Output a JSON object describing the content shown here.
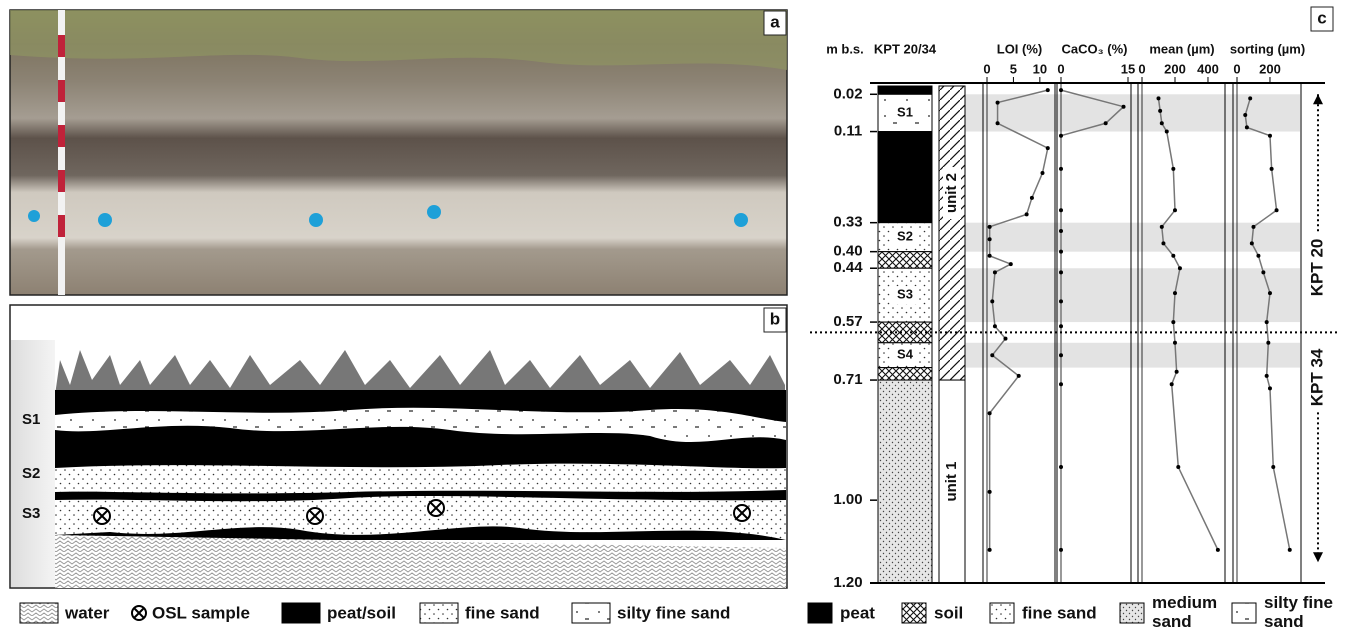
{
  "panel_labels": [
    "a",
    "b",
    "c"
  ],
  "schematic": {
    "layers": [
      "S1",
      "S2",
      "S3"
    ]
  },
  "log": {
    "depth_label": "m b.s.",
    "core_label": "KPT 20/34",
    "depth_range": [
      0,
      1.2
    ],
    "depth_ticks": [
      {
        "value": 0.02,
        "label": "0.02"
      },
      {
        "value": 0.11,
        "label": "0.11"
      },
      {
        "value": 0.33,
        "label": "0.33"
      },
      {
        "value": 0.4,
        "label": "0.40"
      },
      {
        "value": 0.44,
        "label": "0.44"
      },
      {
        "value": 0.57,
        "label": "0.57"
      },
      {
        "value": 0.71,
        "label": "0.71"
      },
      {
        "value": 1.0,
        "label": "1.00"
      },
      {
        "value": 1.2,
        "label": "1.20"
      }
    ],
    "layers": [
      {
        "top": 0,
        "bottom": 0.02,
        "type": "peat"
      },
      {
        "top": 0.02,
        "bottom": 0.11,
        "type": "silty fine sand",
        "name": "S1"
      },
      {
        "top": 0.11,
        "bottom": 0.33,
        "type": "peat"
      },
      {
        "top": 0.33,
        "bottom": 0.4,
        "type": "fine sand",
        "name": "S2"
      },
      {
        "top": 0.4,
        "bottom": 0.44,
        "type": "soil"
      },
      {
        "top": 0.44,
        "bottom": 0.57,
        "type": "fine sand",
        "name": "S3"
      },
      {
        "top": 0.57,
        "bottom": 0.62,
        "type": "soil"
      },
      {
        "top": 0.62,
        "bottom": 0.68,
        "type": "fine sand",
        "name": "S4"
      },
      {
        "top": 0.68,
        "bottom": 0.71,
        "type": "soil"
      },
      {
        "top": 0.71,
        "bottom": 1.2,
        "type": "medium sand"
      }
    ],
    "units": [
      {
        "name": "unit 2",
        "top": 0,
        "bottom": 0.71
      },
      {
        "name": "unit 1",
        "top": 0.71,
        "bottom": 1.2
      }
    ],
    "cores": [
      {
        "name": "KPT 20",
        "top": 0.02,
        "bottom": 0.595
      },
      {
        "name": "KPT 34",
        "top": 0.595,
        "bottom": 1.15
      }
    ],
    "core_boundary": 0.595,
    "sample_bands": [
      [
        0.02,
        0.11
      ],
      [
        0.33,
        0.4
      ],
      [
        0.44,
        0.57
      ],
      [
        0.62,
        0.68
      ]
    ],
    "plots": [
      {
        "title": "LOI (%)",
        "xlim": [
          0,
          12.3
        ],
        "xticks": [
          0,
          5,
          10
        ],
        "depth": [
          0.01,
          0.04,
          0.09,
          0.15,
          0.21,
          0.27,
          0.31,
          0.34,
          0.37,
          0.41,
          0.43,
          0.45,
          0.52,
          0.58,
          0.61,
          0.65,
          0.7,
          0.79,
          0.98,
          1.12
        ],
        "values": [
          11.5,
          2.0,
          2.0,
          11.5,
          10.5,
          8.5,
          7.5,
          0.5,
          0.5,
          0.5,
          4.5,
          1.5,
          1.0,
          1.5,
          3.5,
          1.0,
          6.0,
          0.5,
          0.5,
          0.5
        ]
      },
      {
        "title": "CaCO₃ (%)",
        "xlim": [
          0,
          15
        ],
        "xticks": [
          0,
          15
        ],
        "depth": [
          0.01,
          0.05,
          0.09,
          0.12,
          0.2,
          0.3,
          0.35,
          0.4,
          0.45,
          0.52,
          0.58,
          0.65,
          0.72,
          0.92,
          1.12
        ],
        "values": [
          0,
          14,
          10,
          0,
          0,
          0,
          0,
          0,
          0,
          0,
          0,
          0,
          0,
          0,
          0
        ]
      },
      {
        "title": "mean (µm)",
        "xlim": [
          0,
          485
        ],
        "xticks": [
          0,
          200,
          400
        ],
        "depth": [
          0.03,
          0.06,
          0.09,
          0.11,
          0.2,
          0.3,
          0.34,
          0.38,
          0.41,
          0.44,
          0.5,
          0.57,
          0.62,
          0.69,
          0.72,
          0.92,
          1.12
        ],
        "values": [
          100,
          110,
          120,
          150,
          190,
          200,
          120,
          130,
          190,
          230,
          200,
          190,
          200,
          210,
          180,
          220,
          460
        ]
      },
      {
        "title": "sorting (µm)",
        "xlim": [
          0,
          370
        ],
        "xticks": [
          0,
          200
        ],
        "depth": [
          0.03,
          0.07,
          0.1,
          0.12,
          0.2,
          0.3,
          0.34,
          0.38,
          0.41,
          0.45,
          0.5,
          0.57,
          0.62,
          0.7,
          0.73,
          0.92,
          1.12
        ],
        "values": [
          80,
          50,
          60,
          200,
          210,
          240,
          100,
          90,
          130,
          160,
          200,
          180,
          190,
          180,
          200,
          220,
          320
        ]
      }
    ]
  },
  "legend_b": [
    "water",
    "OSL sample",
    "peat/soil",
    "fine sand",
    "silty fine sand"
  ],
  "legend_c": [
    "peat",
    "soil",
    "fine sand",
    "medium sand",
    "silty fine sand"
  ]
}
